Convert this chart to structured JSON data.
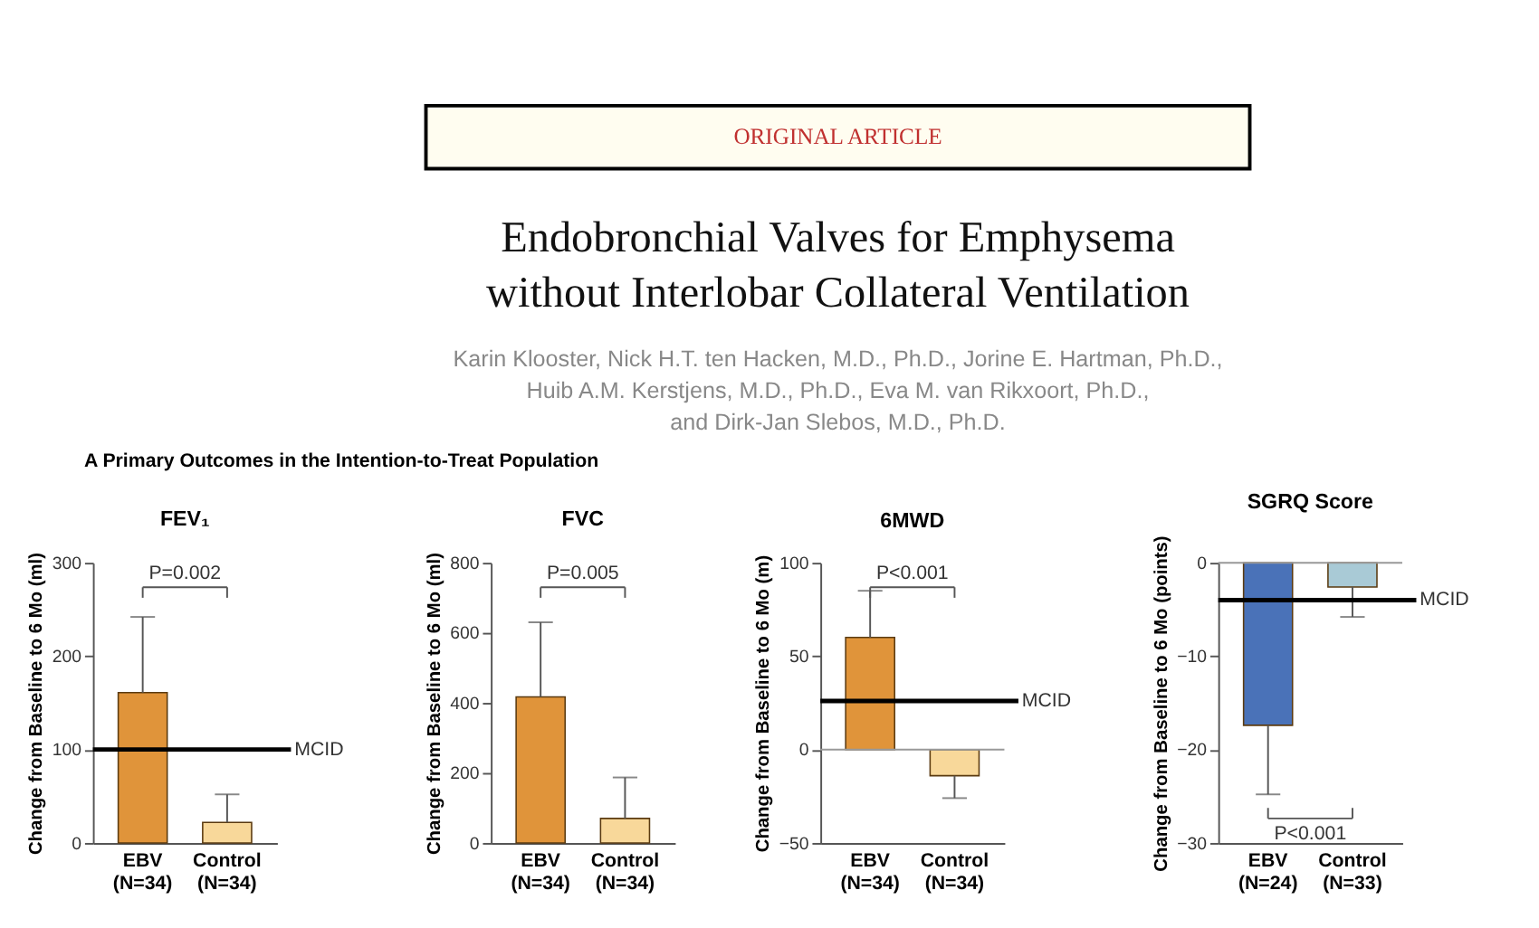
{
  "chart_data": [
    {
      "type": "other",
      "title": "Endobronchial Valves for Emphysema\nwithout Interlobar Collateral Ventilation",
      "subtitle": "Karin Klooster, Nick H.T. ten Hacken, M.D., Ph.D., Jorine E. Hartman, Ph.D.,\nHuib A.M. Kerstjens, M.D., Ph.D., Eva M. van Rikxoort, Ph.D.,\nand Dirk-Jan Slebos, M.D., Ph.D.",
      "annotations": [
        "ORIGINAL ARTICLE",
        "A  Primary Outcomes in the Intention-to-Treat Population"
      ]
    },
    {
      "type": "bar",
      "title": "FEV₁",
      "ylabel": "Change from Baseline to 6 Mo (ml)",
      "categories": [
        "EBV\n(N=34)",
        "Control\n(N=34)"
      ],
      "values": [
        161,
        22
      ],
      "colors": [
        "#e0943a",
        "#f8d89a"
      ],
      "errors": [
        [
          161,
          242
        ],
        [
          22,
          52
        ]
      ],
      "ylim": [
        0,
        300
      ],
      "yticks": [
        0,
        100,
        200,
        300
      ],
      "ref_lines": [
        {
          "axis": "y",
          "value": 100,
          "label": "MCID",
          "color": "#000000"
        }
      ],
      "annotations": [
        "P=0.002"
      ]
    },
    {
      "type": "bar",
      "title": "FVC",
      "ylabel": "Change from Baseline to 6 Mo (ml)",
      "categories": [
        "EBV\n(N=34)",
        "Control\n(N=34)"
      ],
      "values": [
        417,
        70
      ],
      "colors": [
        "#e0943a",
        "#f8d89a"
      ],
      "errors": [
        [
          417,
          630
        ],
        [
          70,
          187
        ]
      ],
      "ylim": [
        0,
        800
      ],
      "yticks": [
        0,
        200,
        400,
        600,
        800
      ],
      "annotations": [
        "P=0.005"
      ]
    },
    {
      "type": "bar",
      "title": "6MWD",
      "ylabel": "Change from Baseline to 6 Mo (m)",
      "categories": [
        "EBV\n(N=34)",
        "Control\n(N=34)"
      ],
      "values": [
        60,
        -14
      ],
      "colors": [
        "#e0943a",
        "#f8d89a"
      ],
      "errors": [
        [
          60,
          85
        ],
        [
          -26,
          -14
        ]
      ],
      "ylim": [
        -50,
        100
      ],
      "yticks": [
        -50,
        0,
        50,
        100
      ],
      "ref_lines": [
        {
          "axis": "y",
          "value": 0,
          "color": "#999999"
        },
        {
          "axis": "y",
          "value": 26,
          "label": "MCID",
          "color": "#000000"
        }
      ],
      "annotations": [
        "P<0.001"
      ]
    },
    {
      "type": "bar",
      "title": "SGRQ Score",
      "ylabel": "Change from Baseline to 6 Mo (points)",
      "categories": [
        "EBV\n(N=24)",
        "Control\n(N=33)"
      ],
      "values": [
        -17.4,
        -2.6
      ],
      "colors": [
        "#4a72b8",
        "#a9cad6"
      ],
      "errors": [
        [
          -24.8,
          -17.4
        ],
        [
          -5.8,
          -2.6
        ]
      ],
      "ylim": [
        -30,
        0
      ],
      "yticks": [
        -30,
        -20,
        -10,
        0
      ],
      "ref_lines": [
        {
          "axis": "y",
          "value": 0,
          "color": "#999999"
        },
        {
          "axis": "y",
          "value": -4,
          "label": "MCID",
          "color": "#000000"
        }
      ],
      "annotations": [
        "P<0.001"
      ]
    }
  ]
}
